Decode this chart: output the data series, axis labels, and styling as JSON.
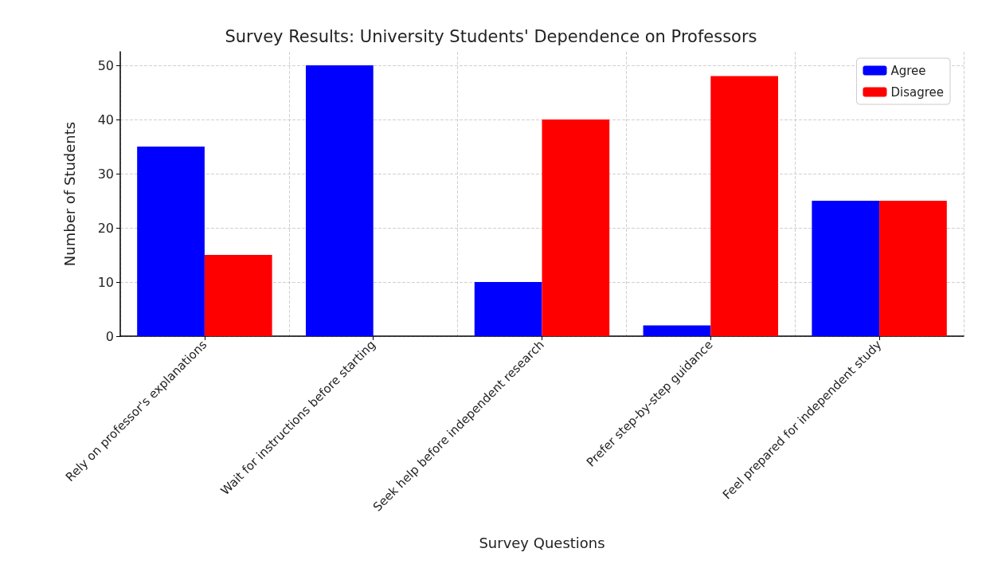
{
  "chart_data": {
    "type": "bar",
    "title": "Survey Results: University Students' Dependence on Professors",
    "xlabel": "Survey Questions",
    "ylabel": "Number of Students",
    "categories": [
      "Rely on professor's explanations",
      "Wait for instructions before starting",
      "Seek help before independent research",
      "Prefer step-by-step guidance",
      "Feel prepared for independent study"
    ],
    "series": [
      {
        "name": "Agree",
        "color": "#0000ff",
        "values": [
          35,
          50,
          10,
          2,
          25
        ]
      },
      {
        "name": "Disagree",
        "color": "#ff0000",
        "values": [
          15,
          0,
          40,
          48,
          25
        ]
      }
    ],
    "ylim": [
      0,
      52.5
    ],
    "yticks": [
      0,
      10,
      20,
      30,
      40,
      50
    ],
    "grid": true,
    "legend": "top right"
  }
}
